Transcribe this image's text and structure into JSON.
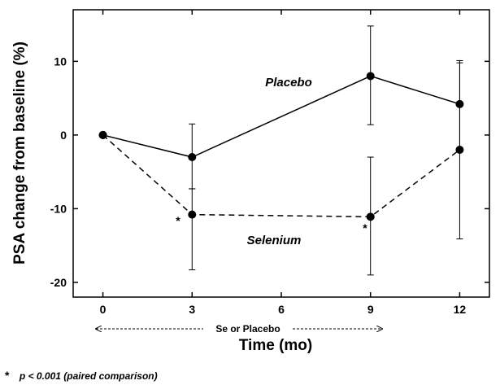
{
  "chart_data": {
    "type": "line",
    "x": [
      0,
      3,
      9,
      12
    ],
    "xticks": [
      "0",
      "3",
      "6",
      "9",
      "12"
    ],
    "yticks": [
      "-20",
      "-10",
      "0",
      "10"
    ],
    "xlim": [
      -1,
      13
    ],
    "ylim": [
      -22,
      17
    ],
    "xlabel": "Time (mo)",
    "ylabel": "PSA change from baseline (%)",
    "series": [
      {
        "name": "Placebo",
        "values": [
          0,
          -3,
          8,
          4.2
        ],
        "err_low": [
          0,
          -7.3,
          1.4,
          -1.9
        ],
        "err_high": [
          0,
          1.5,
          14.8,
          10.1
        ],
        "line_style": "solid"
      },
      {
        "name": "Selenium",
        "values": [
          0,
          -10.8,
          -11.1,
          -2
        ],
        "err_low": [
          0,
          -18.3,
          -19,
          -14.1
        ],
        "err_high": [
          0,
          -7.3,
          -3,
          9.8
        ],
        "line_style": "dashed"
      }
    ],
    "significance_markers": [
      {
        "x": 3,
        "label": "*"
      },
      {
        "x": 9,
        "label": "*"
      }
    ],
    "arrow_annotation": "Se or Placebo",
    "footnote_symbol": "*",
    "footnote": "p < 0.001 (paired comparison)",
    "grid": false,
    "colors": {
      "line": "#000000",
      "background": "#ffffff"
    }
  }
}
